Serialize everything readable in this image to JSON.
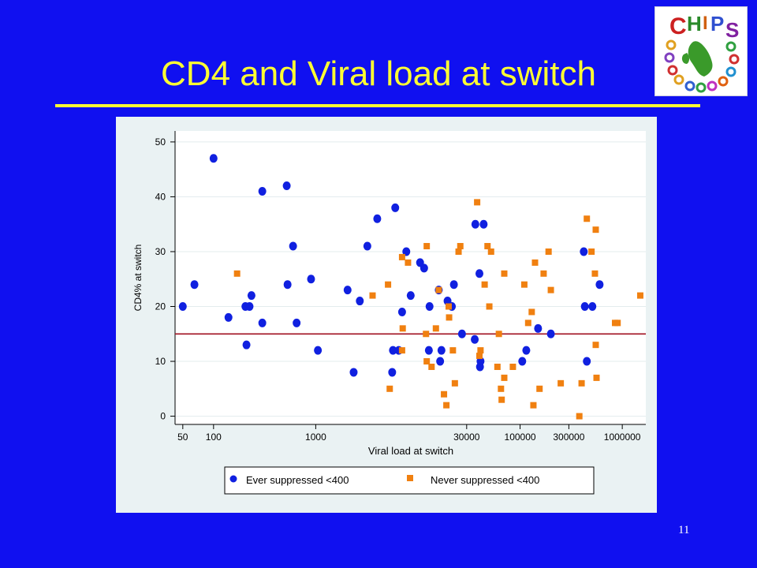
{
  "slide": {
    "title": "CD4 and Viral load at switch",
    "page_number": "11",
    "logo_text": "CHIPS"
  },
  "colors": {
    "background": "#1010f0",
    "title": "#ffff33",
    "card": "#eaf2f3",
    "series_ever": "#1020e0",
    "series_never": "#f08010",
    "reference_line": "#a01020"
  },
  "chart_data": {
    "type": "scatter",
    "xlabel": "Viral load at switch",
    "ylabel": "CD4% at switch",
    "xscale": "log",
    "xlim": [
      42,
      1700000
    ],
    "ylim": [
      -1.5,
      52
    ],
    "x_ticks": [
      50,
      100,
      1000,
      30000,
      100000,
      300000,
      1000000
    ],
    "x_tick_labels": [
      "50",
      "100",
      "1000",
      "30000",
      "100000",
      "300000",
      "1000000"
    ],
    "y_ticks": [
      0,
      10,
      20,
      30,
      40,
      50
    ],
    "y_tick_labels": [
      "0",
      "10",
      "20",
      "30",
      "40",
      "50"
    ],
    "grid": true,
    "reference_line_y": 15,
    "legend_position": "bottom",
    "series": [
      {
        "name": "Ever suppressed <400",
        "marker": "circle",
        "color": "#1020e0",
        "points": [
          [
            50,
            20
          ],
          [
            65,
            24
          ],
          [
            100,
            47
          ],
          [
            140,
            18
          ],
          [
            205,
            20
          ],
          [
            225,
            20
          ],
          [
            235,
            22
          ],
          [
            300,
            17
          ],
          [
            300,
            41
          ],
          [
            210,
            13
          ],
          [
            520,
            42
          ],
          [
            530,
            24
          ],
          [
            600,
            31
          ],
          [
            650,
            17
          ],
          [
            900,
            25
          ],
          [
            1050,
            12
          ],
          [
            2050,
            23
          ],
          [
            2350,
            8
          ],
          [
            2700,
            21
          ],
          [
            3200,
            31
          ],
          [
            4000,
            36
          ],
          [
            5700,
            12
          ],
          [
            5600,
            8
          ],
          [
            6000,
            38
          ],
          [
            6500,
            12
          ],
          [
            7000,
            19
          ],
          [
            7700,
            30
          ],
          [
            8500,
            22
          ],
          [
            10500,
            28
          ],
          [
            11500,
            27
          ],
          [
            13000,
            20
          ],
          [
            12800,
            12
          ],
          [
            16000,
            23
          ],
          [
            16500,
            10
          ],
          [
            17000,
            12
          ],
          [
            19500,
            21
          ],
          [
            21500,
            20
          ],
          [
            22500,
            24
          ],
          [
            27000,
            15
          ],
          [
            36000,
            14
          ],
          [
            36500,
            35
          ],
          [
            40000,
            26
          ],
          [
            40500,
            9
          ],
          [
            41000,
            10
          ],
          [
            44000,
            35
          ],
          [
            105000,
            10
          ],
          [
            115000,
            12
          ],
          [
            150000,
            16
          ],
          [
            200000,
            15
          ],
          [
            420000,
            30
          ],
          [
            430000,
            20
          ],
          [
            450000,
            10
          ],
          [
            510000,
            20
          ],
          [
            600000,
            24
          ]
        ]
      },
      {
        "name": "Never suppressed <400",
        "marker": "square",
        "color": "#f08010",
        "points": [
          [
            170,
            26
          ],
          [
            3600,
            22
          ],
          [
            5100,
            24
          ],
          [
            5300,
            5
          ],
          [
            7000,
            29
          ],
          [
            7100,
            16
          ],
          [
            7000,
            12
          ],
          [
            8000,
            28
          ],
          [
            12000,
            15
          ],
          [
            12200,
            31
          ],
          [
            12200,
            10
          ],
          [
            13600,
            9
          ],
          [
            15000,
            16
          ],
          [
            16000,
            23
          ],
          [
            18000,
            4
          ],
          [
            19000,
            2
          ],
          [
            20000,
            20
          ],
          [
            20200,
            18
          ],
          [
            22000,
            12
          ],
          [
            23000,
            6
          ],
          [
            25000,
            30
          ],
          [
            26000,
            31
          ],
          [
            38000,
            39
          ],
          [
            40000,
            11
          ],
          [
            41000,
            12
          ],
          [
            45000,
            24
          ],
          [
            48000,
            31
          ],
          [
            50000,
            20
          ],
          [
            52000,
            30
          ],
          [
            60000,
            9
          ],
          [
            62000,
            15
          ],
          [
            65000,
            5
          ],
          [
            66000,
            3
          ],
          [
            70000,
            26
          ],
          [
            70000,
            7
          ],
          [
            85000,
            9
          ],
          [
            110000,
            24
          ],
          [
            120000,
            17
          ],
          [
            130000,
            19
          ],
          [
            135000,
            2
          ],
          [
            140000,
            28
          ],
          [
            155000,
            5
          ],
          [
            170000,
            26
          ],
          [
            190000,
            30
          ],
          [
            200000,
            23
          ],
          [
            250000,
            6
          ],
          [
            380000,
            0
          ],
          [
            400000,
            6
          ],
          [
            450000,
            36
          ],
          [
            500000,
            30
          ],
          [
            540000,
            26
          ],
          [
            550000,
            34
          ],
          [
            550000,
            13
          ],
          [
            560000,
            7
          ],
          [
            850000,
            17
          ],
          [
            900000,
            17
          ],
          [
            1500000,
            22
          ]
        ]
      }
    ]
  }
}
